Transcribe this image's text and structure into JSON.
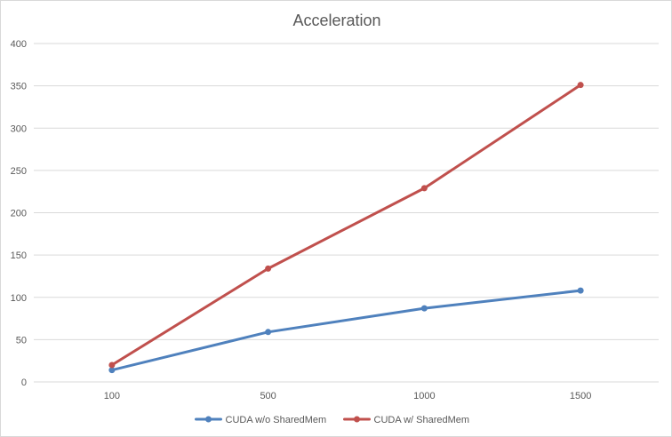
{
  "chart_data": {
    "type": "line",
    "title": "Acceleration",
    "xlabel": "",
    "ylabel": "",
    "categories": [
      "100",
      "500",
      "1000",
      "1500"
    ],
    "ylim": [
      0,
      400
    ],
    "yticks": [
      0,
      50,
      100,
      150,
      200,
      250,
      300,
      350,
      400
    ],
    "grid": true,
    "legend_position": "bottom",
    "series": [
      {
        "name": "CUDA w/o SharedMem",
        "color": "#4f81bd",
        "values": [
          14,
          59,
          87,
          108
        ]
      },
      {
        "name": "CUDA w/ SharedMem",
        "color": "#c0504d",
        "values": [
          20,
          134,
          229,
          351
        ]
      }
    ]
  }
}
